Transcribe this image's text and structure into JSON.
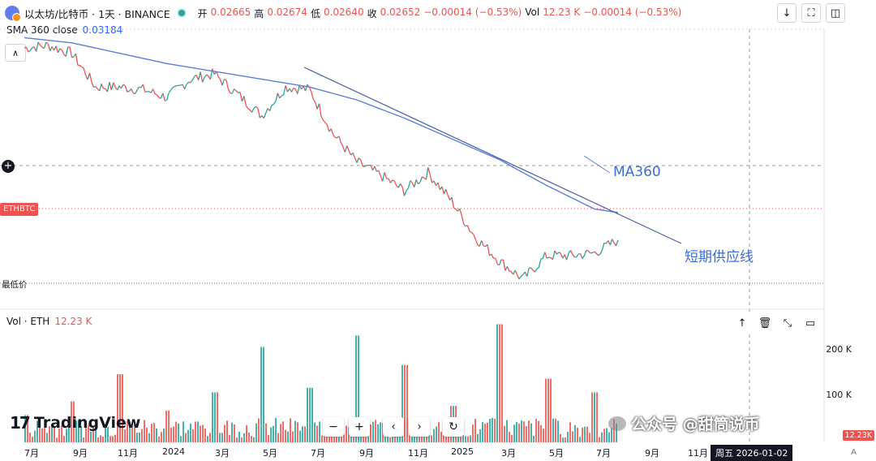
{
  "header": {
    "symbol": "以太坊/比特币 · 1天 · BINANCE",
    "ohlc": [
      {
        "key": "开",
        "value": "0.02665"
      },
      {
        "key": "高",
        "value": "0.02674"
      },
      {
        "key": "低",
        "value": "0.02640"
      },
      {
        "key": "收",
        "value": "0.02652"
      }
    ],
    "change": "−0.00014 (−0.53%)",
    "vol_key": "Vol",
    "vol_value": "12.23 K",
    "vol_change": "−0.00014 (−0.53%)"
  },
  "sma": {
    "label": "SMA 360 close",
    "value": "0.03184"
  },
  "tags": {
    "pair": "ETHBTC",
    "lowest": "最低价"
  },
  "annotations": {
    "ma": "MA360",
    "supply": "短期供应线"
  },
  "volume_pane": {
    "label": "Vol · ETH",
    "value": "12.23 K",
    "ticks": [
      "200 K",
      "100 K"
    ],
    "last_tag": "12.23K"
  },
  "brand": {
    "logo": "17",
    "name": "TradingView"
  },
  "toolbar": {
    "minus": "−",
    "plus": "+",
    "left": "‹",
    "right": "›",
    "reset": "↻"
  },
  "x_axis": [
    "7月",
    "9月",
    "11月",
    "2024",
    "3月",
    "5月",
    "7月",
    "9月",
    "11月",
    "2025",
    "3月",
    "5月",
    "7月",
    "9月",
    "11月"
  ],
  "crosshair_date": "周五  2026-01-02",
  "watermark": "公众号 @甜筒说币",
  "auto_label": "A",
  "colors": {
    "up": "#26a69a",
    "down": "#ef5350",
    "sma": "#5b7fd6",
    "annotation": "#3b6dd6",
    "supply_line": "#4a5fa8"
  },
  "chart_data": {
    "type": "line",
    "series": [
      {
        "name": "ETHBTC",
        "x": [
          "2023-07",
          "2023-08",
          "2023-09",
          "2023-10",
          "2023-11",
          "2023-12",
          "2024-01",
          "2024-02",
          "2024-03",
          "2024-04",
          "2024-05",
          "2024-06",
          "2024-07",
          "2024-08",
          "2024-09",
          "2024-10",
          "2024-11",
          "2024-12",
          "2025-01",
          "2025-02",
          "2025-03",
          "2025-04",
          "2025-05",
          "2025-06",
          "2025-07",
          "2025-08"
        ],
        "values": [
          0.0635,
          0.064,
          0.0625,
          0.056,
          0.056,
          0.0555,
          0.054,
          0.0575,
          0.0585,
          0.0545,
          0.0505,
          0.056,
          0.0555,
          0.047,
          0.0415,
          0.039,
          0.036,
          0.0395,
          0.034,
          0.027,
          0.0225,
          0.019,
          0.0235,
          0.0235,
          0.024,
          0.0265
        ]
      },
      {
        "name": "SMA 360 close",
        "x": [
          "2023-07",
          "2023-09",
          "2023-11",
          "2024-01",
          "2024-03",
          "2024-05",
          "2024-07",
          "2024-09",
          "2024-11",
          "2025-01",
          "2025-03",
          "2025-05",
          "2025-07",
          "2025-08"
        ],
        "values": [
          0.0655,
          0.0645,
          0.0625,
          0.0605,
          0.059,
          0.0575,
          0.056,
          0.0535,
          0.05,
          0.046,
          0.042,
          0.037,
          0.0325,
          0.0318
        ]
      }
    ],
    "volume": {
      "x": [
        "2023-07",
        "2023-09",
        "2023-11",
        "2024-01",
        "2024-03",
        "2024-05",
        "2024-07",
        "2024-09",
        "2024-11",
        "2025-01",
        "2025-03",
        "2025-05",
        "2025-07"
      ],
      "peaks_k": [
        60,
        90,
        150,
        70,
        110,
        210,
        120,
        235,
        170,
        80,
        260,
        140,
        110
      ]
    },
    "y_ticks_volume": [
      "200 K",
      "100 K"
    ]
  }
}
